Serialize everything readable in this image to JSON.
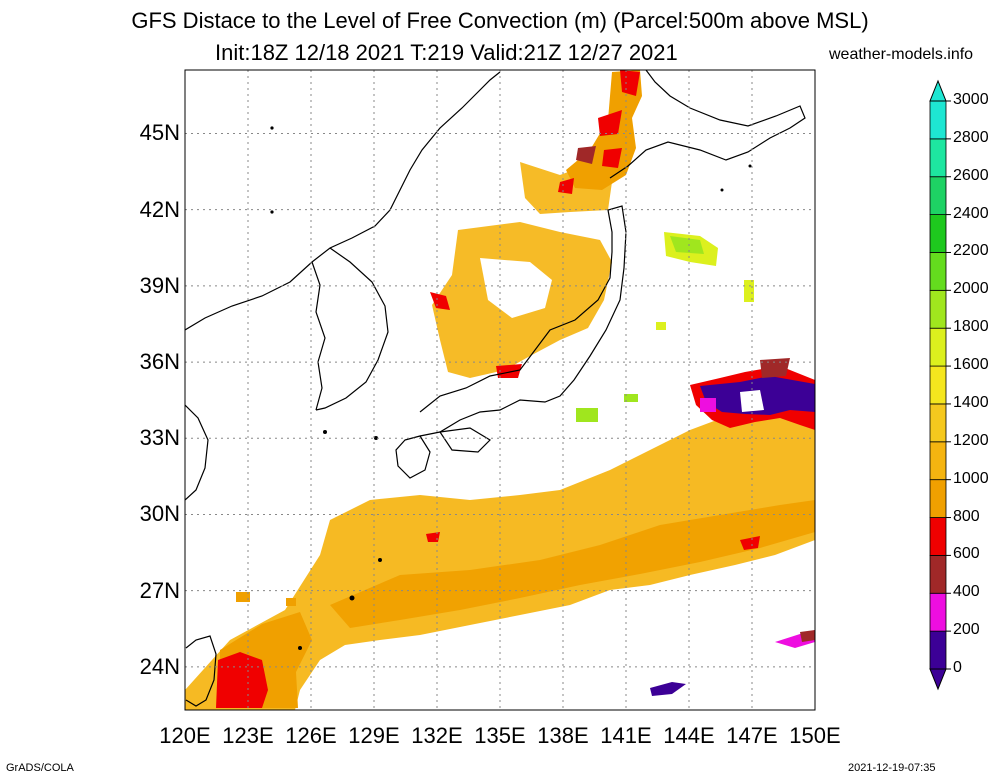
{
  "title": {
    "line1": "GFS Distace to the Level of Free Convection (m) (Parcel:500m above MSL)",
    "line2": "Init:18Z 12/18 2021 T:219 Valid:21Z 12/27 2021",
    "credit": "weather-models.info"
  },
  "footer": {
    "left": "GrADS/COLA",
    "right": "2021-12-19-07:35"
  },
  "map": {
    "lon_range": [
      120,
      150
    ],
    "lat_range": [
      22.3,
      47.5
    ],
    "x_ticks": [
      "120E",
      "123E",
      "126E",
      "129E",
      "132E",
      "135E",
      "138E",
      "141E",
      "144E",
      "147E",
      "150E"
    ],
    "y_ticks": [
      "24N",
      "27N",
      "30N",
      "33N",
      "36N",
      "39N",
      "42N",
      "45N"
    ],
    "grid": true
  },
  "colorbar": {
    "labels": [
      "0",
      "200",
      "400",
      "600",
      "800",
      "1000",
      "1200",
      "1400",
      "1600",
      "1800",
      "2000",
      "2200",
      "2400",
      "2600",
      "2800",
      "3000"
    ],
    "colors": [
      "#3c0096",
      "#ee0ee0",
      "#a02828",
      "#f00000",
      "#f0a000",
      "#f5b410",
      "#f5c81e",
      "#f5e61e",
      "#dcf01e",
      "#a0e61e",
      "#64dc1e",
      "#1ec81e",
      "#1ed264",
      "#1ee6a0",
      "#1ee6d2"
    ],
    "low_arrow_color": "#3c0096",
    "high_arrow_color": "#1ee6d2"
  }
}
